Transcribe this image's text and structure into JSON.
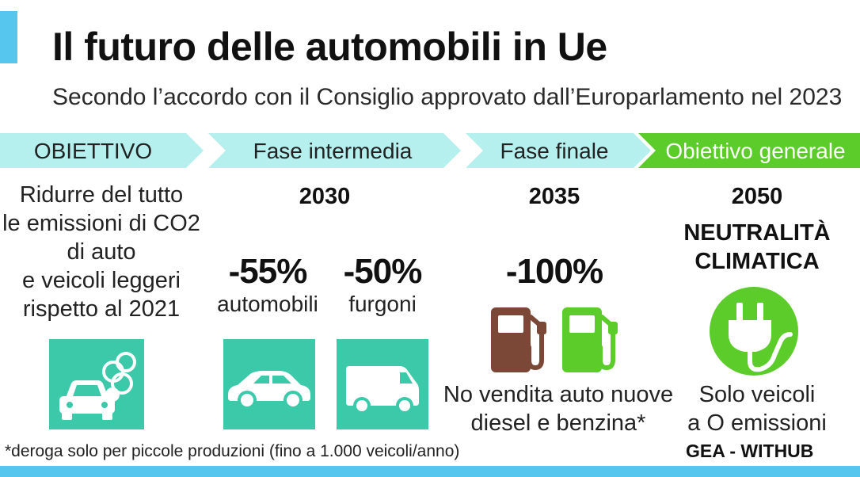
{
  "header": {
    "title": "Il futuro delle automobili in Ue",
    "subtitle": "Secondo l’accordo con il Consiglio approvato dall’Europarlamento nel 2023"
  },
  "stages": [
    {
      "label": "OBIETTIVO"
    },
    {
      "label": "Fase intermedia"
    },
    {
      "label": "Fase finale"
    },
    {
      "label": "Obiettivo generale"
    }
  ],
  "objective": {
    "lines": [
      "Ridurre del tutto",
      "le emissioni di CO2",
      "di auto",
      "e veicoli leggeri",
      "rispetto al 2021"
    ]
  },
  "intermediate": {
    "year": "2030",
    "cars": {
      "value": "-55%",
      "label": "automobili"
    },
    "vans": {
      "value": "-50%",
      "label": "furgoni"
    }
  },
  "final": {
    "year": "2035",
    "value": "-100%",
    "caption_lines": [
      "No vendita auto nuove",
      "diesel e benzina*"
    ]
  },
  "general": {
    "year": "2050",
    "goal_lines": [
      "NEUTRALITÀ",
      "CLIMATICA"
    ],
    "caption_lines": [
      "Solo veicoli",
      "a O emissioni"
    ]
  },
  "footer": {
    "footnote": "*deroga solo per piccole produzioni (fino a 1.000 veicoli/anno)",
    "source": "GEA - WITHUB"
  },
  "colors": {
    "accent_blue": "#56c6ee",
    "stage_cyan": "#b5f0ee",
    "stage_green": "#5ccc2b",
    "tile_teal": "#3cc9a9",
    "pump_brown": "#7b4736",
    "pump_green": "#5ccc2b",
    "plug_green": "#5ccc2b"
  },
  "icons": {
    "objective": "car-emissions-icon",
    "cars": "car-icon",
    "vans": "van-icon",
    "fuel_brown": "fuel-pump-icon",
    "fuel_green": "fuel-pump-icon",
    "plug": "electric-plug-icon"
  }
}
